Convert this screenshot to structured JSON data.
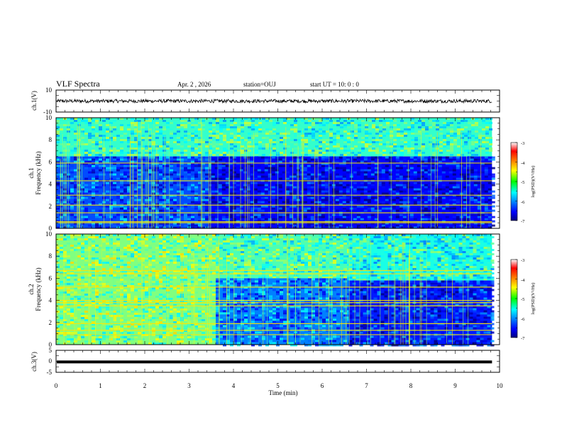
{
  "header": {
    "title": "VLF Spectra",
    "date": "Apr. 2 , 2026",
    "station": "station=OUJ",
    "start": "start UT =   10: 0  : 0"
  },
  "chart_data": [
    {
      "type": "line",
      "ylabel": "ch.1(V)",
      "yticks": [
        "10",
        "-10"
      ],
      "ylim": [
        -10,
        10
      ],
      "x": [
        0,
        9.83
      ],
      "series": [
        {
          "values": [
            0,
            0
          ],
          "note": "dense noisy waveform, amplitude ~±1.5 V around 0"
        }
      ]
    },
    {
      "type": "heatmap",
      "ylabel_line1": "ch.1",
      "ylabel_line2": "Frequency (kHz)",
      "yticks": [
        "0",
        "2",
        "4",
        "6",
        "8",
        "10"
      ],
      "ylim": [
        0,
        10
      ],
      "xlim": [
        0,
        9.83
      ],
      "colorbar": {
        "label": "log(PSD)(V²/Hz)",
        "ticks": [
          "-3",
          "-4",
          "-5",
          "-6",
          "-7"
        ],
        "range": [
          -7,
          -3
        ]
      },
      "regions": [
        {
          "t": [
            0,
            9.83
          ],
          "f": [
            6.5,
            10
          ],
          "value": -5.3
        },
        {
          "t": [
            0,
            3.5
          ],
          "f": [
            0,
            6.5
          ],
          "value": -6.2
        },
        {
          "t": [
            3.5,
            9.83
          ],
          "f": [
            0,
            6.5
          ],
          "value": -6.5
        }
      ],
      "lines_khz": [
        0.5,
        0.6,
        1.4,
        2.1,
        3.0,
        4.3,
        5.9
      ]
    },
    {
      "type": "heatmap",
      "ylabel_line1": "ch.2",
      "ylabel_line2": "Frequency (kHz)",
      "yticks": [
        "0",
        "2",
        "4",
        "6",
        "8",
        "10"
      ],
      "ylim": [
        0,
        10
      ],
      "xlim": [
        0,
        9.83
      ],
      "colorbar": {
        "label": "log(PSD)(V²/Hz)",
        "ticks": [
          "-3",
          "-4",
          "-5",
          "-6",
          "-7"
        ],
        "range": [
          -7,
          -3
        ]
      },
      "regions": [
        {
          "t": [
            0,
            3.6
          ],
          "f": [
            0,
            10
          ],
          "value": -5.0
        },
        {
          "t": [
            3.6,
            6.6
          ],
          "f": [
            6.0,
            10
          ],
          "value": -5.2
        },
        {
          "t": [
            3.6,
            6.6
          ],
          "f": [
            0,
            6.0
          ],
          "value": -6.0
        },
        {
          "t": [
            6.6,
            9.83
          ],
          "f": [
            5.8,
            10
          ],
          "value": -5.4
        },
        {
          "t": [
            6.6,
            9.83
          ],
          "f": [
            0,
            5.8
          ],
          "value": -6.4
        }
      ],
      "lines_khz": [
        0.9,
        1.3,
        1.9,
        3.5,
        3.8,
        4.0,
        5.2,
        6.4,
        6.7
      ]
    },
    {
      "type": "line",
      "ylabel": "ch.3(V)",
      "yticks": [
        "5",
        "0",
        "-5"
      ],
      "ylim": [
        -5,
        5
      ],
      "x": [
        0,
        9.83
      ],
      "series": [
        {
          "values": [
            -0.3,
            -0.3
          ]
        }
      ]
    }
  ],
  "xaxis": {
    "label": "Time (min)",
    "ticks": [
      "0",
      "1",
      "2",
      "3",
      "4",
      "5",
      "6",
      "7",
      "8",
      "9",
      "10"
    ],
    "range": [
      0,
      10
    ]
  }
}
